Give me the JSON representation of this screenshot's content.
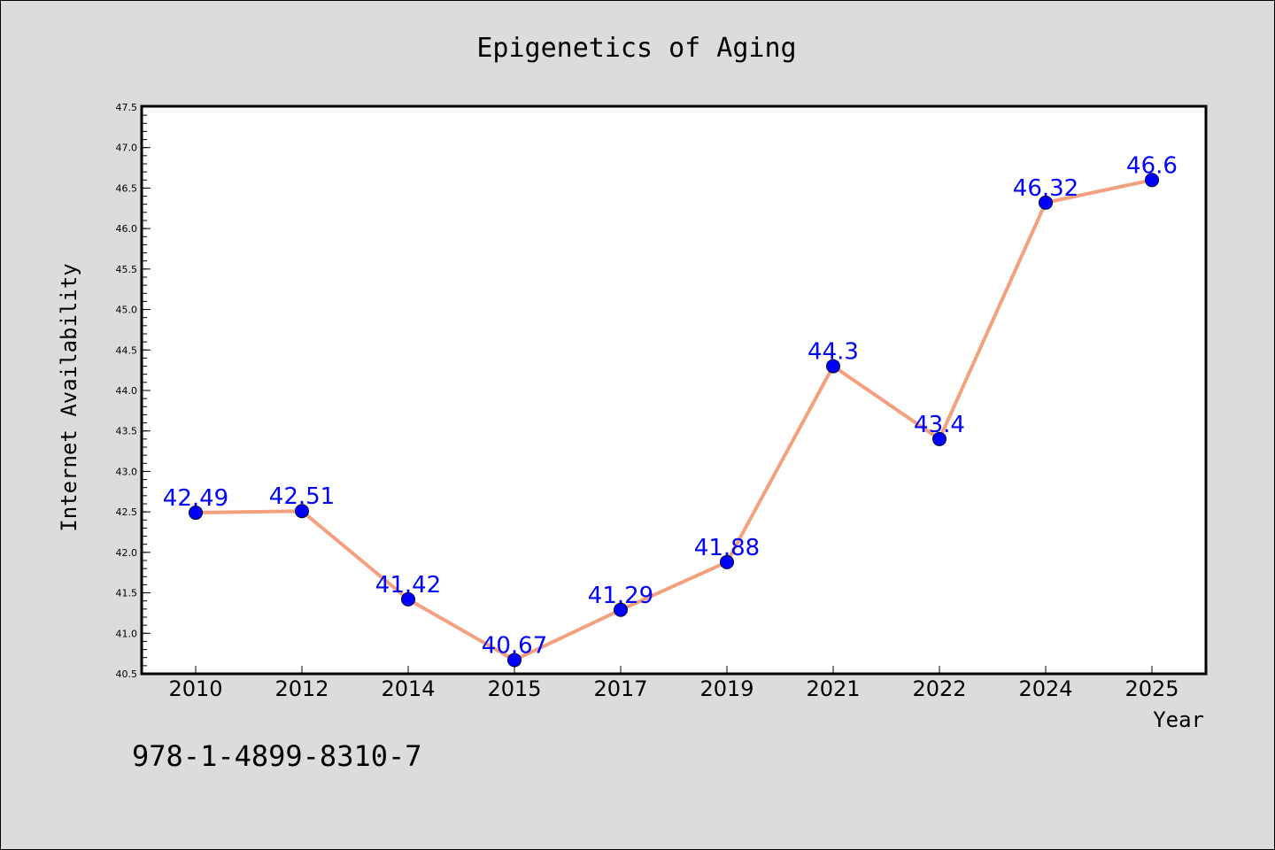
{
  "isbn": "978-1-4899-8310-7",
  "chart_data": {
    "type": "line",
    "title": "Epigenetics of Aging",
    "xlabel": "Year",
    "ylabel": "Internet Availability",
    "categories": [
      "2010",
      "2012",
      "2014",
      "2015",
      "2017",
      "2019",
      "2021",
      "2022",
      "2024",
      "2025"
    ],
    "values": [
      42.49,
      42.51,
      41.42,
      40.67,
      41.29,
      41.88,
      44.3,
      43.4,
      46.32,
      46.6
    ],
    "data_labels": [
      "42.49",
      "42.51",
      "41.42",
      "40.67",
      "41.29",
      "41.88",
      "44.3",
      "43.4",
      "46.32",
      "46.6"
    ],
    "ylim": [
      40.5,
      47.5
    ],
    "yticks": [
      "40.5",
      "41.0",
      "41.5",
      "42.0",
      "42.5",
      "43.0",
      "43.5",
      "44.0",
      "44.5",
      "45.0",
      "45.5",
      "46.0",
      "46.5",
      "47.0",
      "47.5"
    ],
    "grid": false,
    "legend": "none",
    "line_color": "#f4a07f",
    "marker_color": "#0000ff",
    "label_color": "#0000ff",
    "background_color": "#dcdcdc",
    "plot_background": "#ffffff"
  }
}
